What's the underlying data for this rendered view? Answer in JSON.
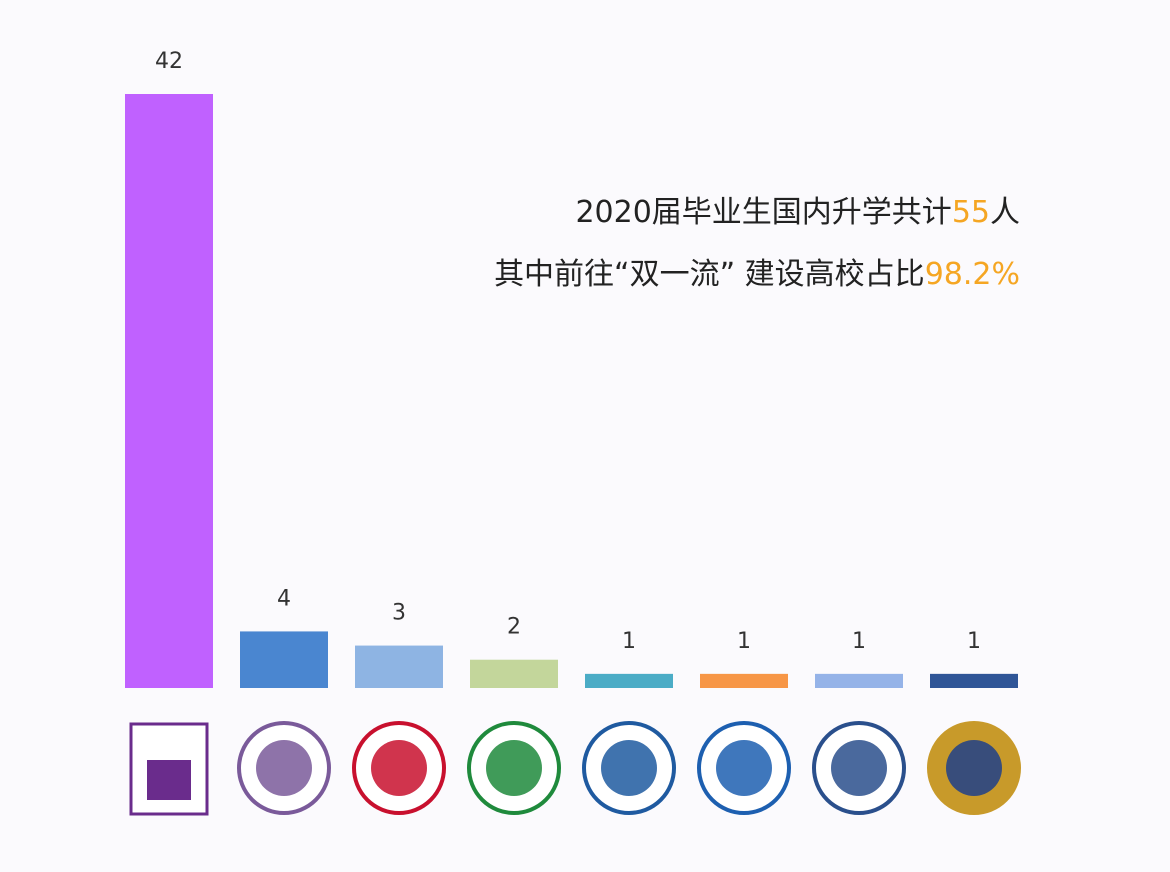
{
  "chart_data": {
    "type": "bar",
    "annotations": [
      [
        {
          "text": "2020届毕业生国内升学共计",
          "color": "#222222"
        },
        {
          "text": "55",
          "color": "#f5a623"
        },
        {
          "text": "人",
          "color": "#222222"
        }
      ],
      [
        {
          "text": "其中前往“双一流” 建设高校占比",
          "color": "#222222"
        },
        {
          "text": "98.2%",
          "color": "#f5a623"
        }
      ]
    ],
    "categories": [
      null,
      null,
      null,
      null,
      null,
      null,
      null,
      null
    ],
    "values": [
      42,
      4,
      3,
      2,
      1,
      1,
      1,
      1
    ],
    "colors": [
      "#c061ff",
      "#4a86d0",
      "#8eb4e3",
      "#c3d69b",
      "#4bacc6",
      "#f79646",
      "#95b3e8",
      "#2f5597"
    ],
    "ylim": [
      0,
      42
    ]
  }
}
